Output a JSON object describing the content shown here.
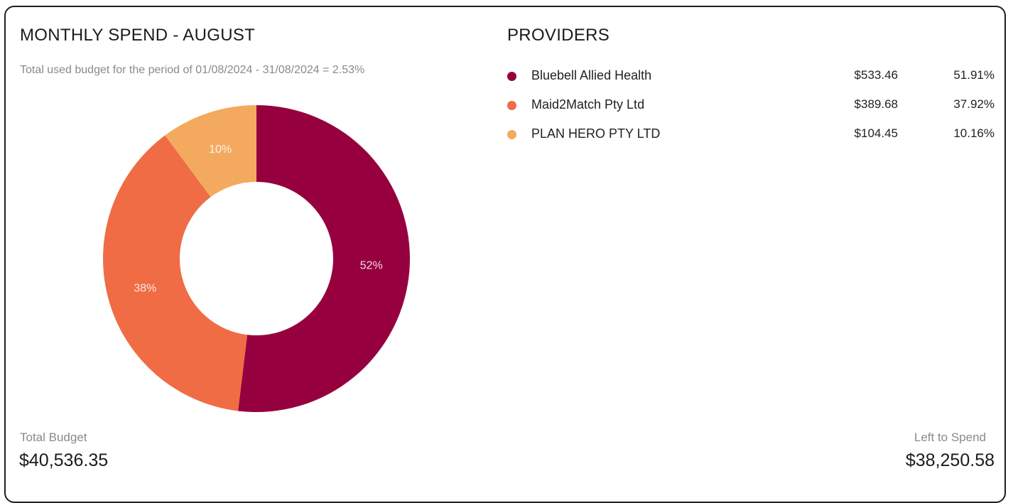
{
  "header": {
    "title": "MONTHLY SPEND - AUGUST",
    "subtitle": "Total used budget for the period of 01/08/2024 - 31/08/2024 = 2.53%"
  },
  "providers": {
    "title": "PROVIDERS",
    "items": [
      {
        "name": "Bluebell Allied Health",
        "amount": "$533.46",
        "percent": "51.91%",
        "color": "#96003f"
      },
      {
        "name": "Maid2Match Pty Ltd",
        "amount": "$389.68",
        "percent": "37.92%",
        "color": "#f06c45"
      },
      {
        "name": "PLAN HERO PTY LTD",
        "amount": "$104.45",
        "percent": "10.16%",
        "color": "#f3aa5e"
      }
    ]
  },
  "footer": {
    "total_budget_label": "Total Budget",
    "total_budget_value": "$40,536.35",
    "left_to_spend_label": "Left to Spend",
    "left_to_spend_value": "$38,250.58"
  },
  "chart_data": {
    "type": "pie",
    "categories": [
      "Bluebell Allied Health",
      "Maid2Match Pty Ltd",
      "PLAN HERO PTY LTD"
    ],
    "values": [
      51.91,
      37.92,
      10.16
    ],
    "labels": [
      "52%",
      "38%",
      "10%"
    ],
    "colors": [
      "#96003f",
      "#f06c45",
      "#f3aa5e"
    ],
    "donut": true
  }
}
